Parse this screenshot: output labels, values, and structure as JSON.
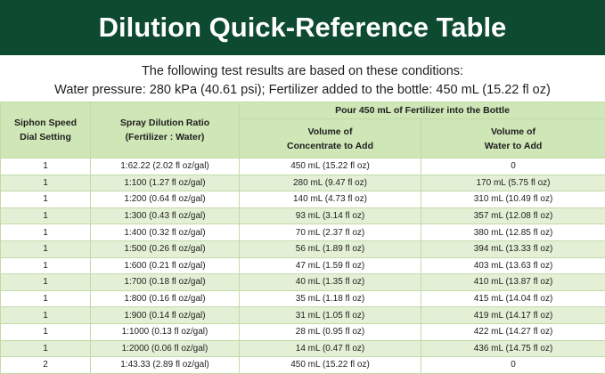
{
  "header": {
    "title": "Dilution Quick-Reference Table"
  },
  "conditions": [
    "The following test results are based on these conditions:",
    "Water pressure: 280 kPa (40.61 psi); Fertilizer added to the bottle: 450 mL (15.22 fl oz)"
  ],
  "table": {
    "group_header": "Pour 450 mL of Fertilizer into the Bottle",
    "columns": [
      [
        "Siphon Speed",
        "Dial Setting"
      ],
      [
        "Spray Dilution Ratio",
        "(Fertilizer : Water)"
      ],
      [
        "Volume of",
        "Concentrate to Add"
      ],
      [
        "Volume of",
        "Water to Add"
      ]
    ],
    "rows": [
      [
        "1",
        "1:62.22 (2.02 fl oz/gal)",
        "450 mL (15.22 fl oz)",
        "0"
      ],
      [
        "1",
        "1:100 (1.27 fl oz/gal)",
        "280 mL (9.47 fl oz)",
        "170 mL (5.75 fl oz)"
      ],
      [
        "1",
        "1:200 (0.64 fl oz/gal)",
        "140 mL (4.73 fl oz)",
        "310 mL (10.49 fl oz)"
      ],
      [
        "1",
        "1:300 (0.43 fl oz/gal)",
        "93 mL (3.14 fl oz)",
        "357 mL (12.08 fl oz)"
      ],
      [
        "1",
        "1:400 (0.32 fl oz/gal)",
        "70 mL (2.37 fl oz)",
        "380 mL (12.85 fl oz)"
      ],
      [
        "1",
        "1:500 (0.26 fl oz/gal)",
        "56 mL (1.89 fl oz)",
        "394 mL (13.33 fl oz)"
      ],
      [
        "1",
        "1:600 (0.21 fl oz/gal)",
        "47 mL (1.59 fl oz)",
        "403 mL (13.63 fl oz)"
      ],
      [
        "1",
        "1:700 (0.18 fl oz/gal)",
        "40 mL (1.35 fl oz)",
        "410 mL (13.87 fl oz)"
      ],
      [
        "1",
        "1:800 (0.16 fl oz/gal)",
        "35 mL (1.18 fl oz)",
        "415 mL (14.04 fl oz)"
      ],
      [
        "1",
        "1:900 (0.14 fl oz/gal)",
        "31 mL (1.05 fl oz)",
        "419 mL (14.17 fl oz)"
      ],
      [
        "1",
        "1:1000 (0.13 fl oz/gal)",
        "28 mL (0.95 fl oz)",
        "422 mL (14.27 fl oz)"
      ],
      [
        "1",
        "1:2000 (0.06 fl oz/gal)",
        "14 mL (0.47 fl oz)",
        "436 mL (14.75 fl oz)"
      ],
      [
        "2",
        "1:43.33 (2.89 fl oz/gal)",
        "450 mL (15.22 fl oz)",
        "0"
      ]
    ]
  }
}
